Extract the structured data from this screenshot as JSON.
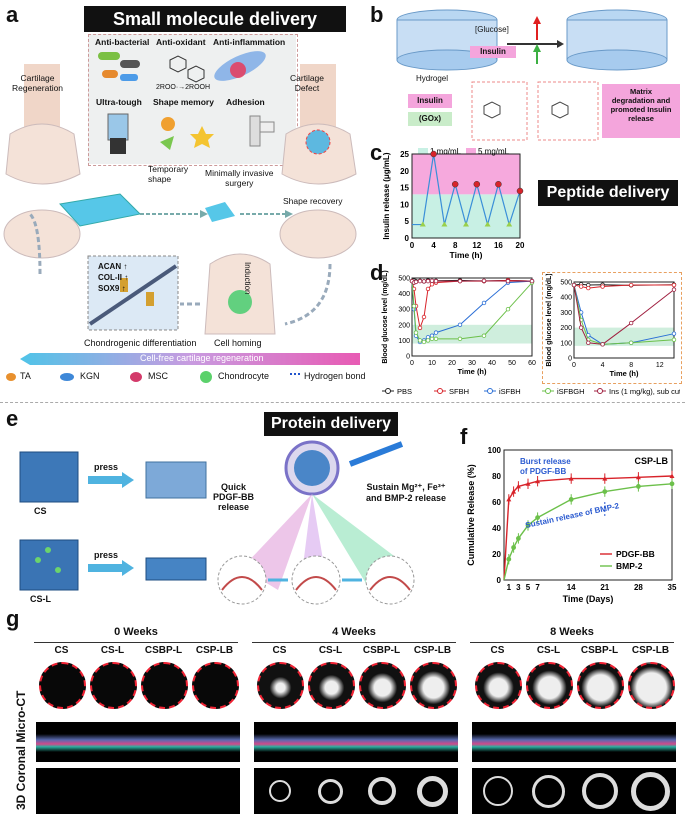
{
  "panel_a": {
    "label": "a",
    "title": "Small molecule delivery",
    "props": [
      "Anti-bacterial",
      "Anti-oxidant",
      "Anti-inflammation",
      "Ultra-tough",
      "Shape memory",
      "Adhesion"
    ],
    "ros": "2ROO·→2ROOH",
    "cartilage_regeneration": "Cartilage\nRegeneration",
    "cartilage_defect": "Cartilage\nDefect",
    "temporary_shape": "Temporary\nshape",
    "minimally_invasive": "Minimally invasive\nsurgery",
    "shape_recovery": "Shape recovery",
    "markers": [
      "ACAN ↑",
      "COL-II ↑",
      "SOX9 ↑"
    ],
    "induction": "Induction",
    "chondrogenic": "Chondrogenic differentiation",
    "cell_homing": "Cell homing",
    "cellfree": "Cell-free cartilage regeneration",
    "legend": [
      "TA",
      "KGN",
      "MSC",
      "Chondrocyte",
      "Hydrogen bond"
    ],
    "colors": {
      "title_bg": "#111111",
      "arrow_pink": "#e85bb4",
      "arrow_blue": "#4fc4e8"
    }
  },
  "panel_b": {
    "label": "b",
    "glucose": "[Glucose]",
    "insulin_arrow": "Insulin",
    "hydrogel": "Hydrogel",
    "insulin_box": "Insulin",
    "gox_box": "(GOx)",
    "matrix": "Matrix\ndegradation and\npromoted Insulin\nrelease"
  },
  "panel_c": {
    "label": "c",
    "peptide_title": "Peptide delivery",
    "chart_data": {
      "type": "line",
      "ylabel": "Insulin release (μg/mL)",
      "xlabel": "Time (h)",
      "xlim": [
        0,
        20
      ],
      "ylim": [
        0,
        25
      ],
      "xticks": [
        "0",
        "4",
        "8",
        "12",
        "16",
        "20"
      ],
      "yticks": [
        "0",
        "5",
        "10",
        "15",
        "20",
        "25"
      ],
      "bands": [
        {
          "name": "1 mg/mL",
          "range": [
            0,
            13
          ],
          "color": "#c8f0e4"
        },
        {
          "name": "5 mg/mL",
          "range": [
            13,
            25
          ],
          "color": "#f6a9dd"
        }
      ],
      "x": [
        2,
        4,
        6,
        8,
        10,
        12,
        14,
        16,
        18,
        20
      ],
      "y": [
        4,
        25,
        4,
        16,
        4,
        16,
        4,
        16,
        4,
        14
      ],
      "marker_colors": [
        "#9ad04a",
        "#d8232a"
      ]
    }
  },
  "panel_d": {
    "label": "d",
    "chart_data": [
      {
        "type": "line",
        "ylabel": "Blood glucose level (mg/dL)",
        "xlabel": "Time (h)",
        "xlim": [
          0,
          60
        ],
        "ylim": [
          0,
          500
        ],
        "xticks": [
          "0",
          "10",
          "20",
          "30",
          "40",
          "50",
          "60"
        ],
        "yticks": [
          "0",
          "100",
          "200",
          "300",
          "400",
          "500"
        ],
        "normal_band": [
          80,
          200
        ],
        "series": [
          {
            "name": "PBS",
            "color": "#222222",
            "x": [
              0,
              1,
              2,
              4,
              6,
              8,
              10,
              12,
              24,
              36,
              48,
              60
            ],
            "y": [
              480,
              485,
              480,
              482,
              478,
              485,
              480,
              482,
              485,
              480,
              485,
              480
            ]
          },
          {
            "name": "SFBH",
            "color": "#d8232a",
            "x": [
              0,
              1,
              2,
              4,
              6,
              8,
              10,
              12,
              24,
              36,
              48,
              60
            ],
            "y": [
              480,
              430,
              320,
              180,
              250,
              430,
              460,
              470,
              480,
              480,
              485,
              480
            ]
          },
          {
            "name": "iSFBH",
            "color": "#2b6fd6",
            "x": [
              0,
              1,
              2,
              4,
              6,
              8,
              10,
              12,
              24,
              36,
              48,
              60
            ],
            "y": [
              480,
              300,
              130,
              90,
              100,
              120,
              130,
              150,
              200,
              340,
              470,
              480
            ]
          },
          {
            "name": "iSFBGH",
            "color": "#6cc04a",
            "x": [
              0,
              1,
              2,
              4,
              6,
              8,
              10,
              12,
              24,
              36,
              48,
              60
            ],
            "y": [
              480,
              320,
              150,
              100,
              90,
              100,
              110,
              110,
              110,
              130,
              300,
              470
            ]
          },
          {
            "name": "Ins (1 mg/kg), sub cut",
            "color": "#a02040",
            "x": [
              0,
              1,
              2,
              4,
              6,
              8,
              10,
              12,
              24,
              36,
              48,
              60
            ],
            "y": [
              480,
              470,
              475,
              480,
              478,
              480,
              482,
              480,
              480,
              482,
              480,
              480
            ]
          }
        ]
      },
      {
        "type": "line",
        "ylabel": "Blood glucose level (mg/dL)",
        "xlabel": "Time (h)",
        "xlim": [
          0,
          14
        ],
        "ylim": [
          0,
          500
        ],
        "xticks": [
          "0",
          "4",
          "8",
          "12"
        ],
        "yticks": [
          "0",
          "100",
          "200",
          "300",
          "400",
          "500"
        ],
        "normal_band": [
          80,
          200
        ],
        "series": [
          {
            "name": "PBS",
            "color": "#222222",
            "x": [
              0,
              1,
              2,
              4,
              8,
              14
            ],
            "y": [
              480,
              485,
              480,
              482,
              478,
              482
            ]
          },
          {
            "name": "SFBH",
            "color": "#d8232a",
            "x": [
              0,
              1,
              2,
              4,
              8,
              14
            ],
            "y": [
              480,
              470,
              460,
              470,
              480,
              480
            ]
          },
          {
            "name": "iSFBH",
            "color": "#2b6fd6",
            "x": [
              0,
              1,
              2,
              4,
              8,
              14
            ],
            "y": [
              480,
              300,
              150,
              90,
              100,
              160
            ]
          },
          {
            "name": "iSFBGH",
            "color": "#6cc04a",
            "x": [
              0,
              1,
              2,
              4,
              8,
              14
            ],
            "y": [
              480,
              250,
              120,
              90,
              100,
              120
            ]
          },
          {
            "name": "Ins (1 mg/kg), sub cut",
            "color": "#a02040",
            "x": [
              0,
              1,
              2,
              4,
              8,
              14
            ],
            "y": [
              480,
              200,
              100,
              90,
              230,
              450
            ]
          }
        ]
      }
    ]
  },
  "panel_e": {
    "label": "e",
    "title": "Protein delivery",
    "press": "press",
    "cs": "CS",
    "csl": "CS-L",
    "quick": "Quick\nPDGF-BB\nrelease",
    "sustain": "Sustain Mg²⁺, Fe³⁺\nand BMP-2 release"
  },
  "panel_f": {
    "label": "f",
    "chart_data": {
      "type": "line",
      "title": "CSP-LB",
      "ylabel": "Cumulative Release (%)",
      "xlabel": "Time (Days)",
      "xlim": [
        0,
        35
      ],
      "ylim": [
        0,
        100
      ],
      "xticks": [
        "1",
        "3",
        "5",
        "7",
        "14",
        "21",
        "28",
        "35"
      ],
      "yticks": [
        "0",
        "20",
        "40",
        "60",
        "80",
        "100"
      ],
      "series": [
        {
          "name": "PDGF-BB",
          "color": "#d8232a",
          "x": [
            0,
            1,
            2,
            3,
            5,
            7,
            14,
            21,
            28,
            35
          ],
          "y": [
            0,
            62,
            68,
            72,
            74,
            76,
            78,
            78,
            79,
            80
          ]
        },
        {
          "name": "BMP-2",
          "color": "#6cc04a",
          "x": [
            0,
            1,
            2,
            3,
            5,
            7,
            14,
            21,
            28,
            35
          ],
          "y": [
            0,
            16,
            25,
            32,
            42,
            48,
            62,
            68,
            72,
            74
          ]
        }
      ],
      "annotations": [
        "Burst release\nof PDGF-BB",
        "Sustain release of BMP-2"
      ]
    }
  },
  "panel_g": {
    "label": "g",
    "side_label": "3D Coronal Micro-CT",
    "weeks": [
      "0 Weeks",
      "4 Weeks",
      "8 Weeks"
    ],
    "groups": [
      "CS",
      "CS-L",
      "CSBP-L",
      "CSP-LB"
    ]
  }
}
